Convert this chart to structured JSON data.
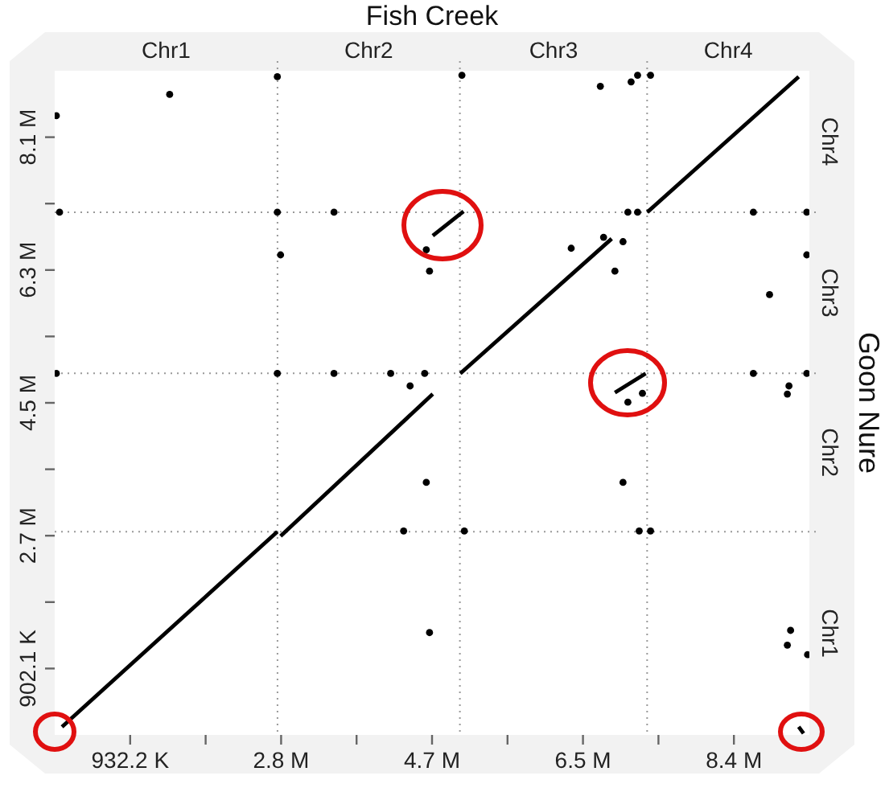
{
  "chart_data": {
    "type": "scatter",
    "title": "Fish Creek",
    "y2label": "Goon Nure",
    "xlim": [
      0,
      9322000
    ],
    "ylim": [
      0,
      9021000
    ],
    "xticks": [
      {
        "value": 932200,
        "label": "932.2 K"
      },
      {
        "value": 1864400,
        "label": null
      },
      {
        "value": 2796600,
        "label": "2.8 M"
      },
      {
        "value": 3728800,
        "label": null
      },
      {
        "value": 4661000,
        "label": "4.7 M"
      },
      {
        "value": 5593200,
        "label": null
      },
      {
        "value": 6525400,
        "label": "6.5 M"
      },
      {
        "value": 7457600,
        "label": null
      },
      {
        "value": 8389800,
        "label": "8.4 M"
      }
    ],
    "yticks": [
      {
        "value": 902100,
        "label": "902.1 K"
      },
      {
        "value": 1804200,
        "label": null
      },
      {
        "value": 2706300,
        "label": "2.7 M"
      },
      {
        "value": 3608400,
        "label": null
      },
      {
        "value": 4510500,
        "label": "4.5 M"
      },
      {
        "value": 5412600,
        "label": null
      },
      {
        "value": 6314700,
        "label": "6.3 M"
      },
      {
        "value": 7216800,
        "label": null
      },
      {
        "value": 8118900,
        "label": "8.1 M"
      }
    ],
    "annotations": [
      "Chr1",
      "Chr2",
      "Chr3",
      "Chr4",
      "Chr1",
      "Chr2",
      "Chr3",
      "Chr4"
    ],
    "grid": false,
    "legend": false,
    "series": [
      {
        "type": "line",
        "color": "#000000",
        "marker": "none",
        "x": [
          90000,
          2750000,
          null,
          2790000,
          4670000,
          null,
          5010000,
          6880000,
          null,
          7320000,
          9190000
        ],
        "values": [
          110000,
          2760000,
          null,
          2700000,
          4630000,
          null,
          4910000,
          6740000,
          null,
          7100000,
          8940000
        ]
      },
      {
        "type": "line",
        "color": "#000000",
        "marker": "none",
        "x": [
          4670000,
          5050000,
          null,
          6920000,
          7300000,
          null,
          9190000,
          9250000
        ],
        "values": [
          6780000,
          7110000,
          null,
          4650000,
          4910000,
          null,
          110000,
          20000
        ]
      },
      {
        "type": "scatter",
        "color": "#000000",
        "marker": "circle",
        "x": [
          1420000,
          20000,
          6740000,
          7120000,
          2750000,
          5030000,
          7200000,
          7360000,
          60000,
          2750000,
          3450000,
          7080000,
          7200000,
          8630000,
          9290000,
          2790000,
          4630000,
          4590000,
          6380000,
          6780000,
          7020000,
          6920000,
          9290000,
          8830000,
          20000,
          2750000,
          3450000,
          4150000,
          4570000,
          8630000,
          9290000,
          4390000,
          9070000,
          9050000,
          4590000,
          7020000,
          4310000,
          5060000,
          7220000,
          7360000,
          4630000,
          9090000,
          9050000,
          9300000,
          7080000,
          7260000
        ],
        "values": [
          8700000,
          8410000,
          8810000,
          8870000,
          8940000,
          8960000,
          8960000,
          8960000,
          7100000,
          7100000,
          7100000,
          7100000,
          7100000,
          7100000,
          7100000,
          6520000,
          6300000,
          6590000,
          6610000,
          6760000,
          6700000,
          6300000,
          6520000,
          5980000,
          4910000,
          4910000,
          4910000,
          4910000,
          4910000,
          4910000,
          4910000,
          4740000,
          4740000,
          4630000,
          3430000,
          3430000,
          2770000,
          2770000,
          2770000,
          2770000,
          1390000,
          1420000,
          1220000,
          1090000,
          4520000,
          4640000
        ]
      }
    ],
    "ref_lines": [
      {
        "axis": "x",
        "value": 2752000,
        "color": "#999999",
        "line_style": "dotted"
      },
      {
        "axis": "x",
        "value": 5005000,
        "color": "#999999",
        "line_style": "dotted"
      },
      {
        "axis": "x",
        "value": 7318000,
        "color": "#999999",
        "line_style": "dotted"
      },
      {
        "axis": "y",
        "value": 2761000,
        "color": "#999999",
        "line_style": "dotted"
      },
      {
        "axis": "y",
        "value": 4913000,
        "color": "#999999",
        "line_style": "dotted"
      },
      {
        "axis": "y",
        "value": 7098000,
        "color": "#999999",
        "line_style": "dotted"
      }
    ]
  }
}
